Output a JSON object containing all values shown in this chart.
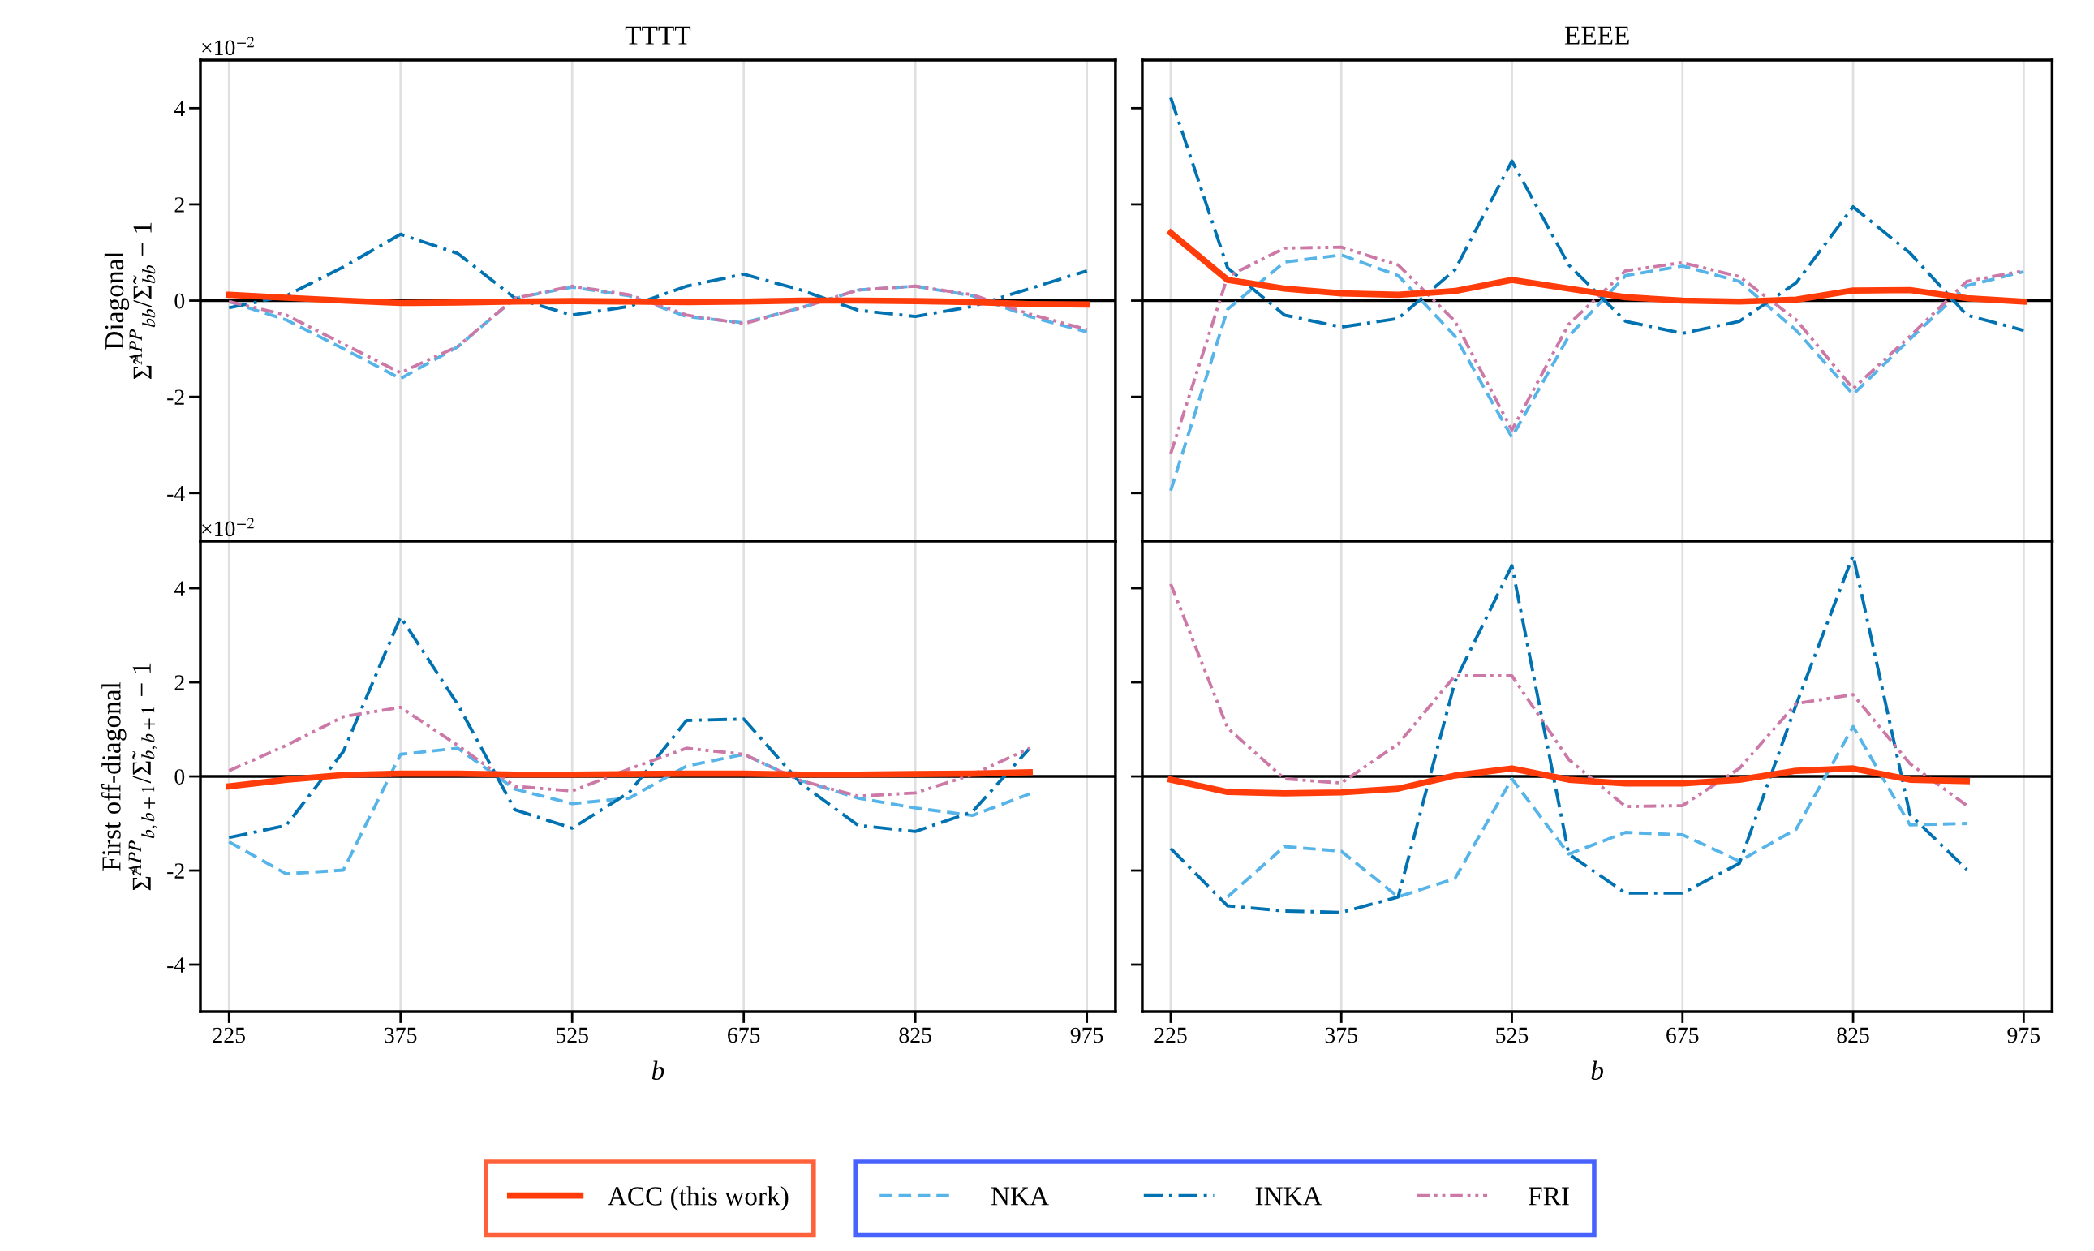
{
  "chart_data": [
    {
      "type": "line",
      "title": "TTTT",
      "ylabel": "Diagonal\nΣ̃$^{APP}$$_{bb}$/Σ̃$_{bb}$ − 1",
      "annotations": [
        "×10$^{−2}$"
      ],
      "x": [
        225,
        275,
        325,
        375,
        425,
        475,
        525,
        575,
        625,
        675,
        725,
        775,
        825,
        875,
        925,
        975
      ],
      "xlim": [
        200,
        1000
      ],
      "xticks": [
        225,
        375,
        525,
        675,
        825,
        975
      ],
      "ylim": [
        -5,
        5
      ],
      "yticks": [
        -4,
        -2,
        0,
        2,
        4
      ],
      "grid": "x",
      "tick_labels": "y",
      "legend": "bottom",
      "ref_lines": [
        {
          "axis": "y",
          "value": 0,
          "color": "#000000"
        }
      ],
      "series": [
        {
          "name": "ACC (this work)",
          "color": "#ff3c0a",
          "line_style": "solid",
          "values": [
            0.12,
            0.06,
            0.0,
            -0.05,
            -0.04,
            -0.02,
            -0.01,
            -0.02,
            -0.03,
            -0.02,
            0.0,
            0.0,
            -0.01,
            -0.03,
            -0.07,
            -0.08
          ]
        },
        {
          "name": "NKA",
          "color": "#56b4e9",
          "line_style": "dashed",
          "values": [
            -0.02,
            -0.4,
            -1.0,
            -1.62,
            -0.96,
            0.05,
            0.28,
            0.1,
            -0.33,
            -0.46,
            -0.15,
            0.22,
            0.3,
            0.1,
            -0.33,
            -0.65
          ]
        },
        {
          "name": "INKA",
          "color": "#0072b2",
          "line_style": "dashdot",
          "values": [
            -0.15,
            0.1,
            0.7,
            1.38,
            0.98,
            0.05,
            -0.3,
            -0.12,
            0.3,
            0.55,
            0.22,
            -0.2,
            -0.33,
            -0.12,
            0.25,
            0.62
          ]
        },
        {
          "name": "FRI",
          "color": "#cc79a7",
          "line_style": "dashdotdot",
          "values": [
            -0.02,
            -0.3,
            -0.9,
            -1.5,
            -0.95,
            0.05,
            0.3,
            0.12,
            -0.3,
            -0.48,
            -0.15,
            0.22,
            0.3,
            0.12,
            -0.28,
            -0.6
          ]
        }
      ]
    },
    {
      "type": "line",
      "title": "EEEE",
      "x": [
        225,
        275,
        325,
        375,
        425,
        475,
        525,
        575,
        625,
        675,
        725,
        775,
        825,
        875,
        925,
        975
      ],
      "xlim": [
        200,
        1000
      ],
      "xticks": [
        225,
        375,
        525,
        675,
        825,
        975
      ],
      "ylim": [
        -5,
        5
      ],
      "yticks": [
        -4,
        -2,
        0,
        2,
        4
      ],
      "grid": "x",
      "tick_labels": false,
      "legend": "bottom",
      "ref_lines": [
        {
          "axis": "y",
          "value": 0,
          "color": "#000000"
        }
      ],
      "series": [
        {
          "name": "ACC (this work)",
          "color": "#ff3c0a",
          "line_style": "solid",
          "values": [
            1.41,
            0.43,
            0.25,
            0.15,
            0.12,
            0.2,
            0.43,
            0.25,
            0.07,
            0.0,
            -0.02,
            0.02,
            0.21,
            0.22,
            0.05,
            -0.02
          ]
        },
        {
          "name": "NKA",
          "color": "#56b4e9",
          "line_style": "dashed",
          "values": [
            -3.95,
            -0.18,
            0.8,
            0.95,
            0.52,
            -0.74,
            -2.84,
            -0.74,
            0.52,
            0.72,
            0.4,
            -0.62,
            -1.95,
            -0.8,
            0.31,
            0.6
          ]
        },
        {
          "name": "INKA",
          "color": "#0072b2",
          "line_style": "dashdot",
          "values": [
            4.22,
            0.68,
            -0.3,
            -0.55,
            -0.37,
            0.64,
            2.9,
            0.74,
            -0.43,
            -0.68,
            -0.43,
            0.37,
            1.95,
            0.99,
            -0.3,
            -0.62
          ]
        },
        {
          "name": "FRI",
          "color": "#cc79a7",
          "line_style": "dashdotdot",
          "values": [
            -3.18,
            0.5,
            1.09,
            1.11,
            0.74,
            -0.43,
            -2.69,
            -0.49,
            0.62,
            0.79,
            0.5,
            -0.4,
            -1.83,
            -0.74,
            0.4,
            0.62
          ]
        }
      ]
    },
    {
      "type": "line",
      "xlabel": "b",
      "ylabel": "First off-diagonal\nΣ̃$^{APP}$$_{b,b+1}$/Σ̃$_{b,b+1}$ − 1",
      "annotations": [
        "×10$^{−2}$"
      ],
      "x": [
        225,
        275,
        325,
        375,
        425,
        475,
        525,
        575,
        625,
        675,
        725,
        775,
        825,
        875,
        925
      ],
      "xlim": [
        200,
        1000
      ],
      "xticks": [
        225,
        375,
        525,
        675,
        825,
        975
      ],
      "ylim": [
        -5,
        5
      ],
      "yticks": [
        -4,
        -2,
        0,
        2,
        4
      ],
      "grid": "x",
      "legend": "bottom",
      "ref_lines": [
        {
          "axis": "y",
          "value": 0,
          "color": "#000000"
        }
      ],
      "series": [
        {
          "name": "ACC (this work)",
          "color": "#ff3c0a",
          "line_style": "solid",
          "values": [
            -0.21,
            -0.07,
            0.03,
            0.06,
            0.06,
            0.04,
            0.04,
            0.05,
            0.06,
            0.06,
            0.04,
            0.04,
            0.05,
            0.06,
            0.09
          ]
        },
        {
          "name": "NKA",
          "color": "#56b4e9",
          "line_style": "dashed",
          "values": [
            -1.39,
            -2.07,
            -1.99,
            0.47,
            0.6,
            -0.27,
            -0.58,
            -0.46,
            0.22,
            0.47,
            -0.09,
            -0.46,
            -0.67,
            -0.83,
            -0.37
          ]
        },
        {
          "name": "INKA",
          "color": "#0072b2",
          "line_style": "dashdot",
          "values": [
            -1.3,
            -1.04,
            0.53,
            3.39,
            1.53,
            -0.71,
            -1.1,
            -0.34,
            1.19,
            1.22,
            -0.15,
            -1.04,
            -1.17,
            -0.75,
            0.6
          ]
        },
        {
          "name": "FRI",
          "color": "#cc79a7",
          "line_style": "dashdotdot",
          "values": [
            0.12,
            0.66,
            1.27,
            1.47,
            0.66,
            -0.21,
            -0.31,
            0.16,
            0.6,
            0.47,
            -0.09,
            -0.42,
            -0.35,
            0.04,
            0.6
          ]
        }
      ]
    },
    {
      "type": "line",
      "xlabel": "b",
      "x": [
        225,
        275,
        325,
        375,
        425,
        475,
        525,
        575,
        625,
        675,
        725,
        775,
        825,
        875,
        925
      ],
      "xlim": [
        200,
        1000
      ],
      "xticks": [
        225,
        375,
        525,
        675,
        825,
        975
      ],
      "ylim": [
        -5,
        5
      ],
      "yticks": [
        -4,
        -2,
        0,
        2,
        4
      ],
      "grid": "x",
      "tick_labels": "x",
      "legend": "bottom",
      "ref_lines": [
        {
          "axis": "y",
          "value": 0,
          "color": "#000000"
        }
      ],
      "series": [
        {
          "name": "ACC (this work)",
          "color": "#ff3c0a",
          "line_style": "solid",
          "values": [
            -0.07,
            -0.33,
            -0.36,
            -0.34,
            -0.26,
            0.02,
            0.17,
            -0.07,
            -0.15,
            -0.15,
            -0.07,
            0.12,
            0.17,
            -0.07,
            -0.1
          ]
        },
        {
          "name": "NKA",
          "color": "#56b4e9",
          "line_style": "dashed",
          "values": [
            null,
            -2.56,
            -1.49,
            -1.59,
            -2.56,
            -2.17,
            -0.05,
            -1.65,
            -1.19,
            -1.24,
            -1.8,
            -1.12,
            1.06,
            -1.03,
            -1.0
          ]
        },
        {
          "name": "INKA",
          "color": "#0072b2",
          "line_style": "dashdot",
          "values": [
            -1.53,
            -2.75,
            -2.86,
            -2.89,
            -2.56,
            2.02,
            4.48,
            -1.65,
            -2.48,
            -2.48,
            -1.85,
            1.53,
            4.7,
            -0.81,
            -1.98
          ]
        },
        {
          "name": "FRI",
          "color": "#cc79a7",
          "line_style": "dashdotdot",
          "values": [
            4.09,
            1.03,
            -0.05,
            -0.14,
            0.69,
            2.14,
            2.14,
            0.36,
            -0.64,
            -0.62,
            0.17,
            1.55,
            1.74,
            0.27,
            -0.62
          ]
        }
      ]
    }
  ]
}
